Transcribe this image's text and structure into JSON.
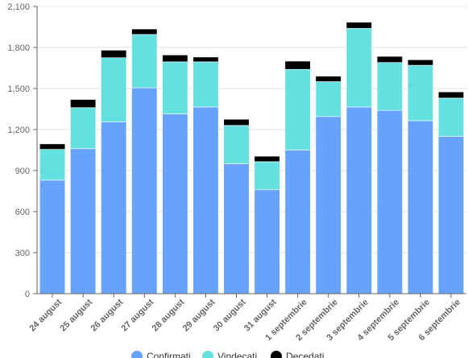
{
  "chart_data": {
    "type": "bar",
    "stacked": true,
    "categories": [
      "24 august",
      "25 august",
      "26 august",
      "27 august",
      "28 august",
      "29 august",
      "30 august",
      "31 august",
      "1 septembrie",
      "2 septembrie",
      "3 septembrie",
      "4 septembrie",
      "5 septembrie",
      "6 septembrie"
    ],
    "series": [
      {
        "name": "Confirmati",
        "color": "#67a3fa",
        "values": [
          830,
          1060,
          1255,
          1505,
          1315,
          1365,
          950,
          760,
          1050,
          1295,
          1365,
          1340,
          1265,
          1150
        ]
      },
      {
        "name": "Vindecati",
        "color": "#64e0e0",
        "values": [
          225,
          300,
          470,
          390,
          380,
          330,
          280,
          205,
          590,
          255,
          575,
          350,
          405,
          280
        ]
      },
      {
        "name": "Decedati",
        "color": "#000000",
        "values": [
          40,
          60,
          55,
          40,
          50,
          35,
          45,
          40,
          60,
          40,
          45,
          45,
          40,
          45
        ]
      }
    ],
    "y_ticks": [
      "0",
      "300",
      "600",
      "900",
      "1,200",
      "1,500",
      "1,800",
      "2,100"
    ],
    "ylim": [
      0,
      2100
    ],
    "grid": true,
    "legend_position": "bottom"
  }
}
